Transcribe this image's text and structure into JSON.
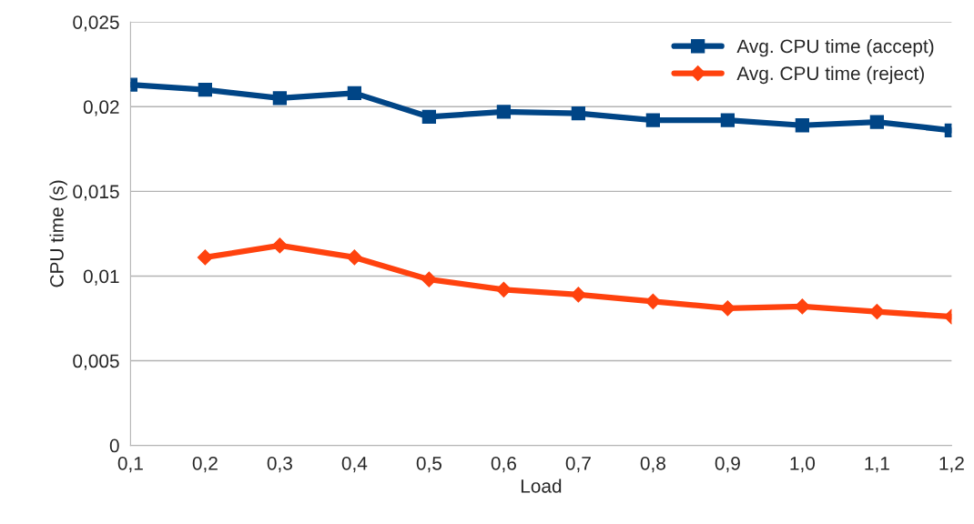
{
  "chart_data": {
    "type": "line",
    "xlabel": "Load",
    "ylabel": "CPU time (s)",
    "x": [
      0.1,
      0.2,
      0.3,
      0.4,
      0.5,
      0.6,
      0.7,
      0.8,
      0.9,
      1.0,
      1.1,
      1.2
    ],
    "series": [
      {
        "name": "Avg. CPU time (accept)",
        "color": "#004586",
        "marker": "square",
        "values": [
          0.0213,
          0.021,
          0.0205,
          0.0208,
          0.0194,
          0.0197,
          0.0196,
          0.0192,
          0.0192,
          0.0189,
          0.0191,
          0.0186
        ]
      },
      {
        "name": "Avg. CPU time (reject)",
        "color": "#ff420e",
        "marker": "diamond",
        "values": [
          null,
          0.0111,
          0.0118,
          0.0111,
          0.0098,
          0.0092,
          0.0089,
          0.0085,
          0.0081,
          0.0082,
          0.0079,
          0.0076
        ]
      }
    ],
    "xlim": [
      0.1,
      1.2
    ],
    "xticks": [
      {
        "value": 0.1,
        "label": "0,1"
      },
      {
        "value": 0.2,
        "label": "0,2"
      },
      {
        "value": 0.3,
        "label": "0,3"
      },
      {
        "value": 0.4,
        "label": "0,4"
      },
      {
        "value": 0.5,
        "label": "0,5"
      },
      {
        "value": 0.6,
        "label": "0,6"
      },
      {
        "value": 0.7,
        "label": "0,7"
      },
      {
        "value": 0.8,
        "label": "0,8"
      },
      {
        "value": 0.9,
        "label": "0,9"
      },
      {
        "value": 1.0,
        "label": "1,0"
      },
      {
        "value": 1.1,
        "label": "1,1"
      },
      {
        "value": 1.2,
        "label": "1,2"
      }
    ],
    "ylim": [
      0,
      0.025
    ],
    "yticks": [
      0,
      {
        "value": 0.005,
        "label": "0,005"
      },
      {
        "value": 0.01,
        "label": "0,01"
      },
      {
        "value": 0.015,
        "label": "0,015"
      },
      {
        "value": 0.02,
        "label": "0,02"
      },
      {
        "value": 0.025,
        "label": "0,025"
      }
    ],
    "grid": "y",
    "legend": "top right",
    "line_style": "solid"
  }
}
